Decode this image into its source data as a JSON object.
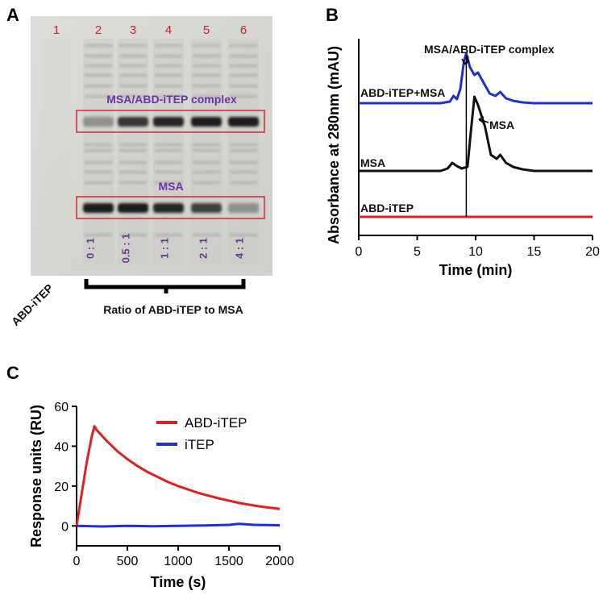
{
  "panel_a": {
    "letter": "A",
    "lanes": [
      "1",
      "2",
      "3",
      "4",
      "5",
      "6"
    ],
    "ratios": [
      "0 : 1",
      "0.5 : 1",
      "1 : 1",
      "2 : 1",
      "4 : 1"
    ],
    "complex_label": "MSA/ABD-iTEP complex",
    "msa_label": "MSA",
    "rotated_label": "ABD-iTEP",
    "xlabel": "Ratio of ABD-iTEP to MSA",
    "complex_band_intensity": [
      0.0,
      0.35,
      0.85,
      0.95,
      1.0,
      1.0
    ],
    "msa_band_intensity": [
      0.0,
      1.0,
      1.0,
      0.95,
      0.8,
      0.35
    ]
  },
  "chart_data": [
    {
      "type": "line",
      "panel": "B",
      "xlabel": "Time (min)",
      "ylabel": "Absorbance at 280nm (mAU)",
      "xlim": [
        0,
        20
      ],
      "xticks": [
        "0",
        "5",
        "10",
        "15",
        "20"
      ],
      "annotations": [
        "MSA/ABD-iTEP complex",
        "MSA"
      ],
      "series": [
        {
          "name": "ABD-iTEP+MSA",
          "color": "#1f2fd6",
          "x": [
            0,
            7,
            7.8,
            8.1,
            8.4,
            8.7,
            9.0,
            9.2,
            9.5,
            9.9,
            10.2,
            10.7,
            11.2,
            11.7,
            12.1,
            12.6,
            13.2,
            14,
            15,
            20
          ],
          "y": [
            0,
            0,
            0.02,
            0.09,
            0.05,
            0.18,
            0.52,
            0.62,
            0.45,
            0.35,
            0.38,
            0.25,
            0.12,
            0.09,
            0.14,
            0.06,
            0.03,
            0.01,
            0,
            0
          ]
        },
        {
          "name": "MSA",
          "color": "#111111",
          "x": [
            0,
            7,
            7.6,
            8.0,
            8.4,
            8.8,
            9.3,
            9.6,
            9.9,
            10.2,
            10.8,
            11.3,
            11.8,
            12.1,
            12.6,
            13.2,
            14,
            15,
            20
          ],
          "y": [
            0,
            0,
            0.03,
            0.1,
            0.06,
            0.03,
            0.05,
            0.5,
            0.92,
            0.82,
            0.55,
            0.2,
            0.15,
            0.2,
            0.1,
            0.05,
            0.02,
            0,
            0
          ]
        },
        {
          "name": "ABD-iTEP",
          "color": "#e02020",
          "x": [
            0,
            20
          ],
          "y": [
            0,
            0
          ]
        }
      ]
    },
    {
      "type": "line",
      "panel": "C",
      "xlabel": "Time (s)",
      "ylabel": "Response units (RU)",
      "xlim": [
        0,
        2000
      ],
      "ylim": [
        -10,
        60
      ],
      "xticks": [
        "0",
        "500",
        "1000",
        "1500",
        "2000"
      ],
      "yticks": [
        "0",
        "20",
        "40",
        "60"
      ],
      "legend_position": "top-right",
      "series": [
        {
          "name": "ABD-iTEP",
          "color": "#e02020",
          "x": [
            0,
            50,
            100,
            150,
            175,
            200,
            300,
            400,
            500,
            600,
            700,
            800,
            900,
            1000,
            1200,
            1400,
            1600,
            1800,
            2000
          ],
          "y": [
            0,
            16,
            32,
            45,
            50,
            48,
            42.5,
            37.5,
            33.5,
            30,
            27,
            24.5,
            22,
            20,
            16.5,
            13.8,
            11.5,
            9.8,
            8.5
          ]
        },
        {
          "name": "iTEP",
          "color": "#1f2fd6",
          "x": [
            0,
            250,
            500,
            750,
            1000,
            1250,
            1500,
            1600,
            1750,
            2000
          ],
          "y": [
            0,
            -0.3,
            0,
            -0.2,
            0,
            0.2,
            0.5,
            1,
            0.5,
            0.3
          ]
        }
      ]
    }
  ]
}
